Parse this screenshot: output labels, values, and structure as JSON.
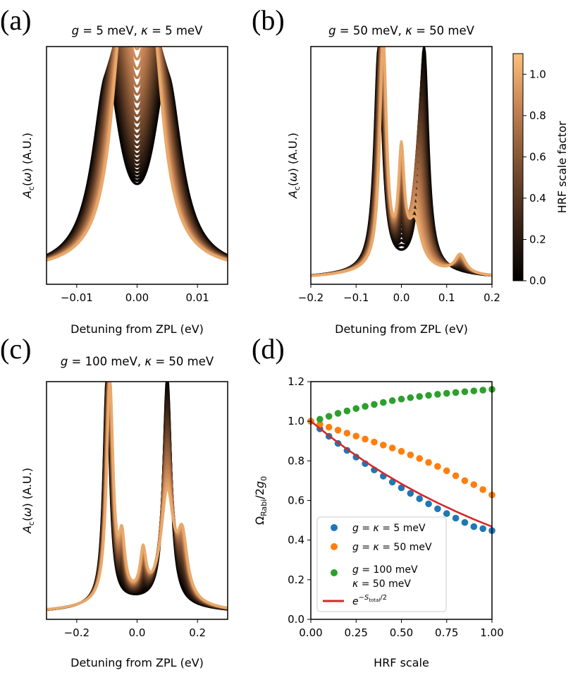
{
  "colors": {
    "colormap": [
      "#000000",
      "#3a2416",
      "#7a4e30",
      "#c18052",
      "#ffc07a"
    ],
    "series_d": [
      "#1f77b4",
      "#ff7f0e",
      "#2ca02c",
      "#d62728"
    ]
  },
  "colorbar": {
    "label": "HRF scale factor",
    "min": 0.0,
    "max": 1.1,
    "ticks": [
      "0.0",
      "0.2",
      "0.4",
      "0.6",
      "0.8",
      "1.0"
    ]
  },
  "chart_data": [
    {
      "panel": "(a)",
      "type": "line",
      "title": "g = 5 meV, κ = 5 meV",
      "title_parts": {
        "g": "g",
        "gval": " = 5 meV, ",
        "k": "κ",
        "kval": " = 5 meV"
      },
      "xlabel": "Detuning from ZPL (eV)",
      "ylabel": "Ac(ω) (A.U.)",
      "xlim": [
        -0.015,
        0.015
      ],
      "xticks": [
        "−0.01",
        "0.00",
        "0.01"
      ],
      "curves": {
        "family": "hrf_sweep",
        "hrf_range": [
          0.0,
          1.0
        ],
        "peak_positions_eV": {
          "at_0": [
            -0.005,
            0.005
          ],
          "at_1": [
            -0.0022,
            0.0022
          ]
        },
        "peak_widths_eV": {
          "at_0": 0.0028,
          "at_1": 0.0024
        },
        "peak_heights_au": {
          "at_0": 0.78,
          "at_1": 0.95
        },
        "baseline_au": 0.05
      }
    },
    {
      "panel": "(b)",
      "type": "line",
      "title": "g = 50 meV, κ = 50 meV",
      "title_parts": {
        "g": "g",
        "gval": " = 50 meV, ",
        "k": "κ",
        "kval": " = 50 meV"
      },
      "xlabel": "Detuning from ZPL (eV)",
      "ylabel": "Ac(ω) (A.U.)",
      "xlim": [
        -0.2,
        0.2
      ],
      "xticks": [
        "−0.2",
        "−0.1",
        "0.0",
        "0.1",
        "0.2"
      ],
      "curves": {
        "family": "hrf_sweep",
        "hrf_range": [
          0.0,
          1.0
        ],
        "peak_positions_eV": {
          "at_0": [
            -0.05,
            0.05
          ],
          "at_1": [
            -0.04,
            0.0,
            0.03,
            0.13
          ]
        },
        "peak_heights_au": {
          "at_0": [
            0.93,
            0.93
          ],
          "at_1": [
            0.95,
            0.47,
            0.29,
            0.09
          ]
        },
        "baseline_au": 0.02
      }
    },
    {
      "panel": "(c)",
      "type": "line",
      "title": "g = 100 meV, κ = 50 meV",
      "title_parts": {
        "g": "g",
        "gval": " = 100 meV, ",
        "k": "κ",
        "kval": " = 50 meV"
      },
      "xlabel": "Detuning from ZPL (eV)",
      "ylabel": "Ac(ω) (A.U.)",
      "xlim": [
        -0.3,
        0.3
      ],
      "xticks": [
        "−0.2",
        "0.0",
        "0.2"
      ],
      "curves": {
        "family": "hrf_sweep",
        "hrf_range": [
          0.0,
          1.0
        ],
        "peak_positions_eV": {
          "at_0": [
            -0.1,
            0.1
          ],
          "at_1": [
            -0.09,
            -0.05,
            0.02,
            0.1,
            0.15
          ]
        },
        "peak_heights_au": {
          "at_0": [
            0.95,
            0.95
          ],
          "at_1": [
            0.92,
            0.25,
            0.2,
            0.6,
            0.3
          ]
        },
        "baseline_au": 0.02
      }
    },
    {
      "panel": "(d)",
      "type": "scatter",
      "xlabel": "HRF scale",
      "ylabel": "ΩRabi/2g0",
      "xlim": [
        0.0,
        1.0
      ],
      "ylim": [
        0.0,
        1.2
      ],
      "xticks": [
        "0.00",
        "0.25",
        "0.50",
        "0.75",
        "1.00"
      ],
      "yticks": [
        "0.0",
        "0.2",
        "0.4",
        "0.6",
        "0.8",
        "1.0",
        "1.2"
      ],
      "legend_position": "lower-left",
      "series": [
        {
          "name": "g = κ = 5 meV",
          "legend": [
            "g = κ = 5 meV"
          ],
          "color": "#1f77b4",
          "marker": "dot",
          "x": [
            0.0,
            0.05,
            0.1,
            0.15,
            0.2,
            0.25,
            0.3,
            0.35,
            0.4,
            0.45,
            0.5,
            0.55,
            0.6,
            0.65,
            0.7,
            0.75,
            0.8,
            0.85,
            0.9,
            0.95,
            1.0
          ],
          "y": [
            1.0,
            0.962,
            0.924,
            0.888,
            0.853,
            0.819,
            0.786,
            0.754,
            0.723,
            0.693,
            0.664,
            0.636,
            0.609,
            0.583,
            0.558,
            0.534,
            0.511,
            0.489,
            0.468,
            0.458,
            0.448
          ]
        },
        {
          "name": "g = κ = 50 meV",
          "legend": [
            "g = κ = 50 meV"
          ],
          "color": "#ff7f0e",
          "marker": "dot",
          "x": [
            0.0,
            0.05,
            0.1,
            0.15,
            0.2,
            0.25,
            0.3,
            0.35,
            0.4,
            0.45,
            0.5,
            0.55,
            0.6,
            0.65,
            0.7,
            0.75,
            0.8,
            0.85,
            0.9,
            0.95,
            1.0
          ],
          "y": [
            1.0,
            0.985,
            0.97,
            0.955,
            0.94,
            0.925,
            0.91,
            0.895,
            0.88,
            0.865,
            0.848,
            0.83,
            0.812,
            0.792,
            0.772,
            0.75,
            0.725,
            0.7,
            0.68,
            0.655,
            0.628
          ]
        },
        {
          "name": "g = 100 meV, κ = 50 meV",
          "legend": [
            "g = 100 meV",
            "κ = 50 meV"
          ],
          "color": "#2ca02c",
          "marker": "dot",
          "x": [
            0.05,
            0.1,
            0.15,
            0.2,
            0.25,
            0.3,
            0.35,
            0.4,
            0.45,
            0.5,
            0.55,
            0.6,
            0.65,
            0.7,
            0.75,
            0.8,
            0.85,
            0.9,
            0.95,
            1.0
          ],
          "y": [
            1.01,
            1.025,
            1.04,
            1.052,
            1.064,
            1.075,
            1.085,
            1.095,
            1.104,
            1.112,
            1.119,
            1.125,
            1.131,
            1.136,
            1.141,
            1.145,
            1.149,
            1.153,
            1.157,
            1.161
          ]
        },
        {
          "name": "e^{-S_total/2}",
          "legend": [
            "e^{−S_total/2}"
          ],
          "color": "#d62728",
          "marker": "line",
          "x": [
            0.0,
            0.1,
            0.2,
            0.3,
            0.4,
            0.5,
            0.6,
            0.7,
            0.8,
            0.9,
            1.0
          ],
          "y": [
            1.0,
            0.927,
            0.859,
            0.796,
            0.738,
            0.684,
            0.634,
            0.588,
            0.545,
            0.505,
            0.468
          ]
        }
      ]
    }
  ]
}
